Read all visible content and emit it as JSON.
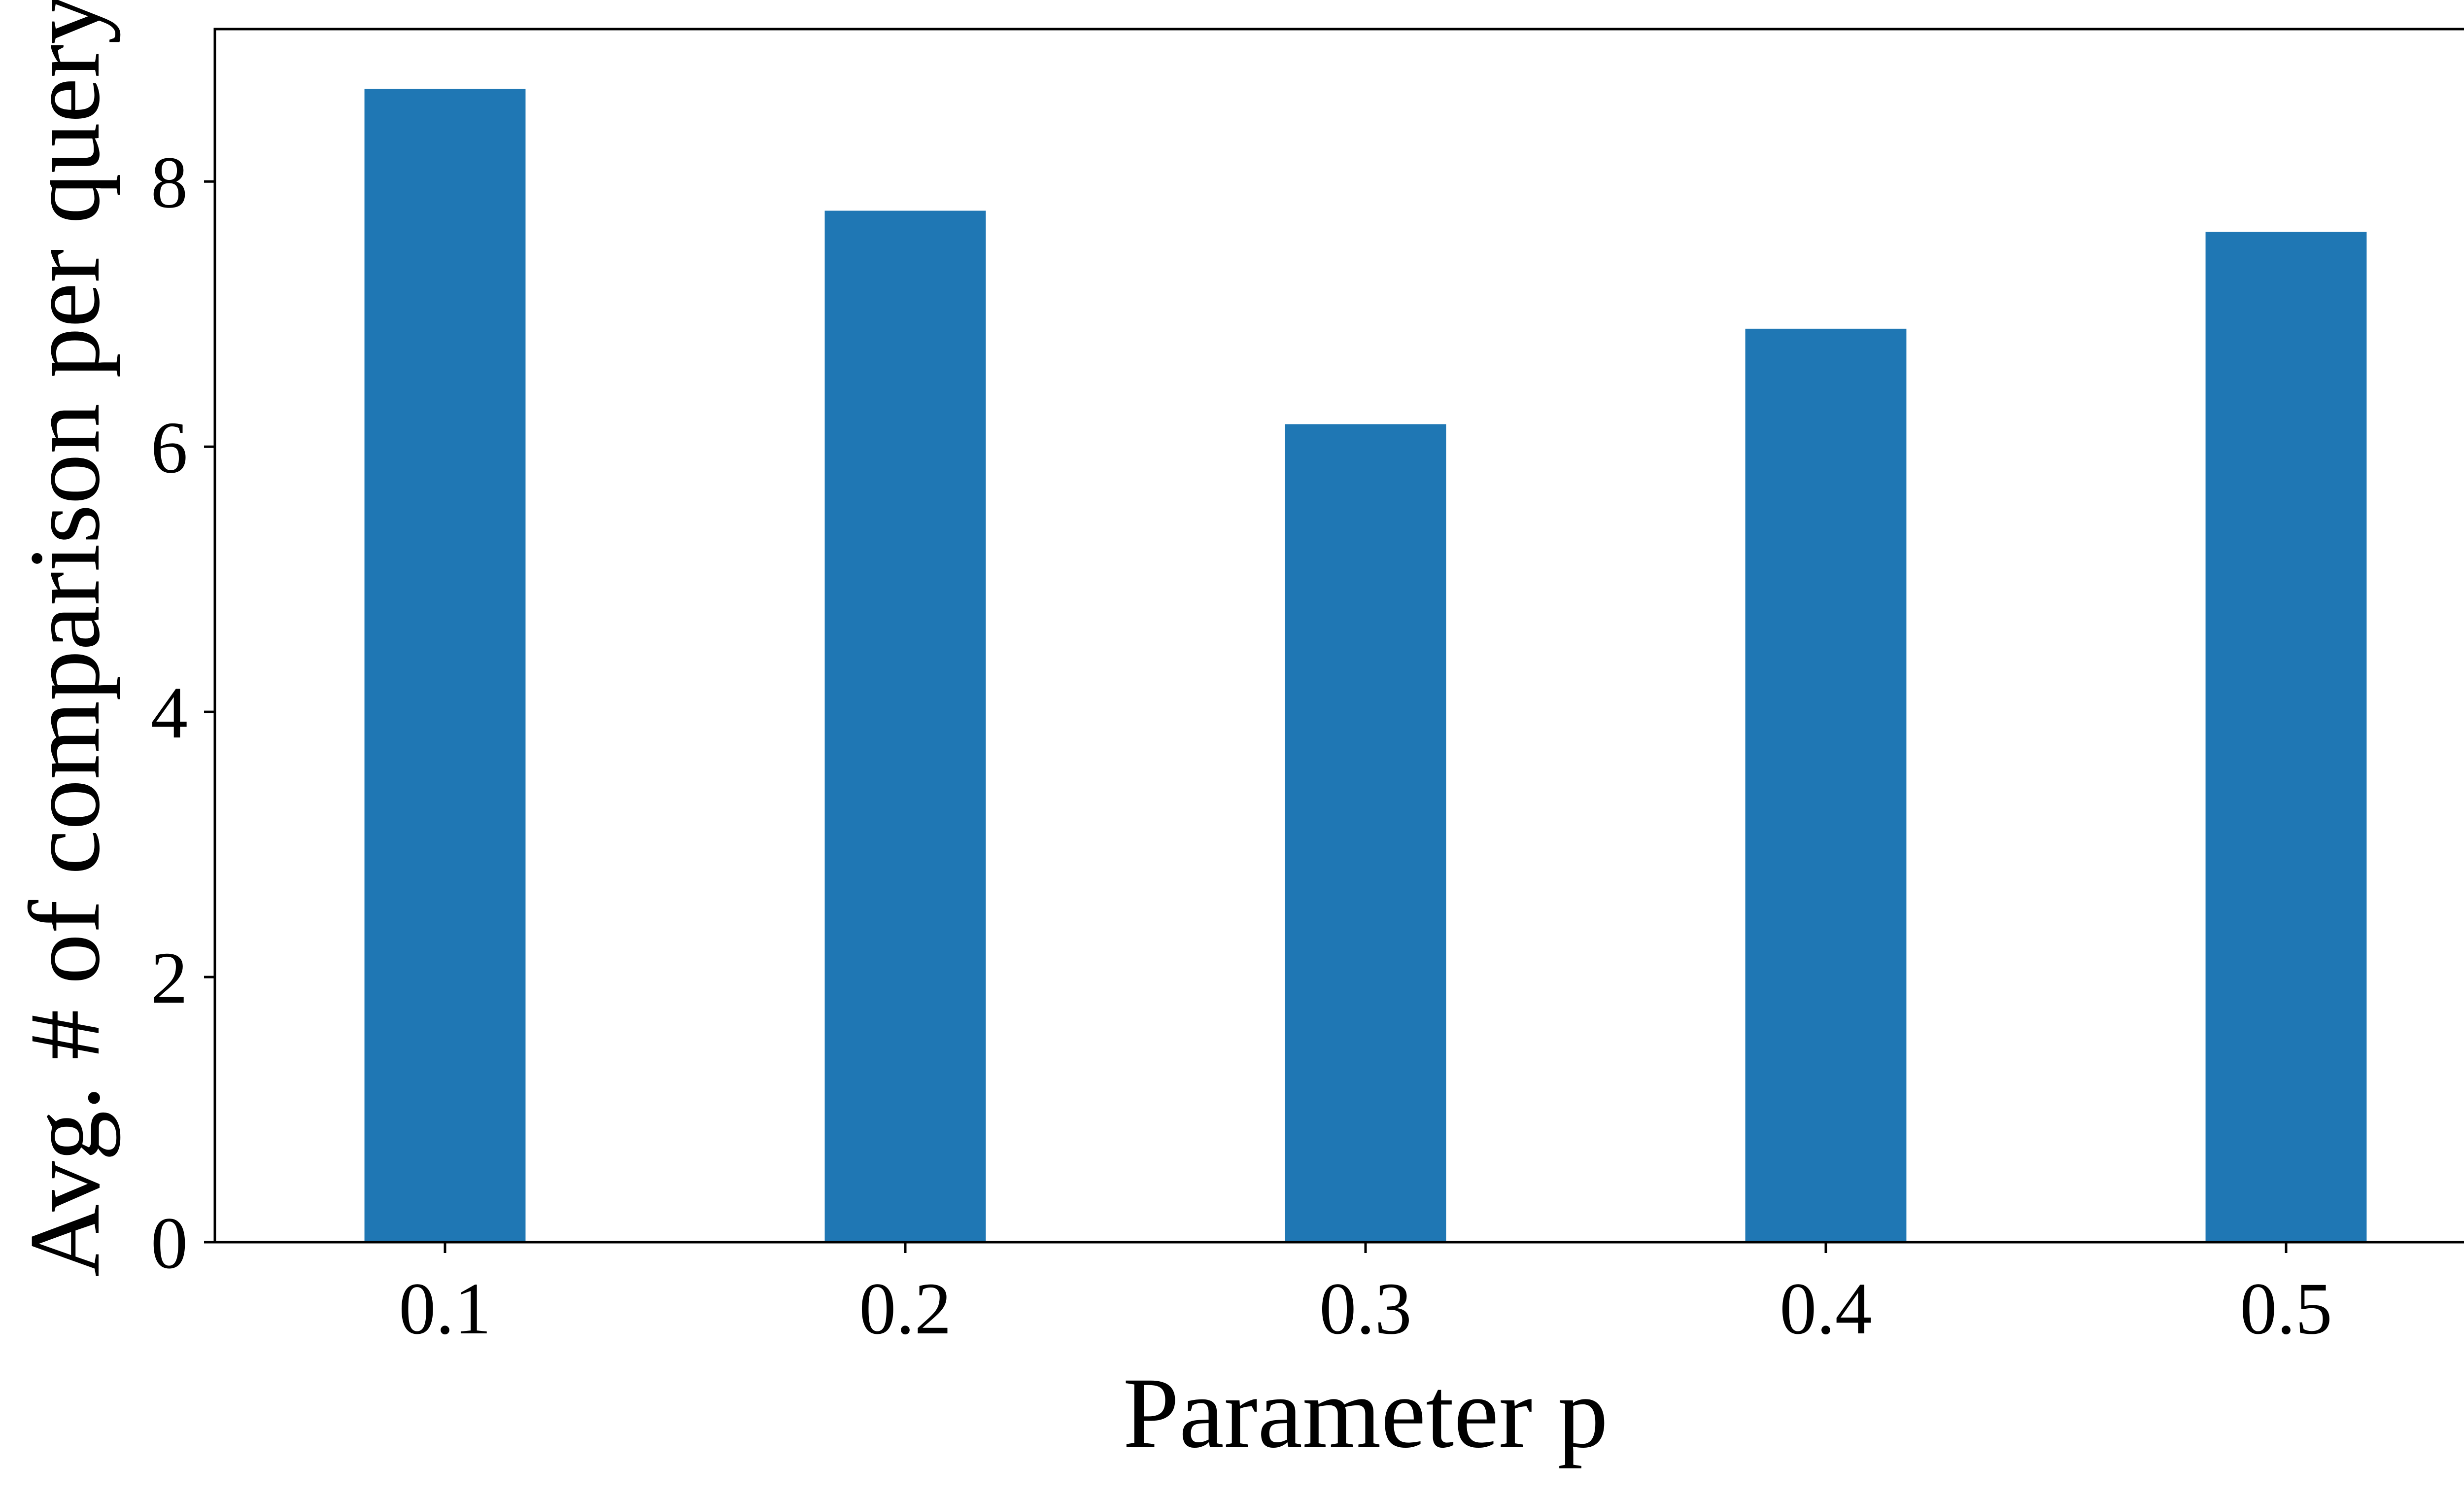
{
  "chart_data": {
    "type": "bar",
    "title": "",
    "xlabel": "Parameter p",
    "ylabel": "Avg. # of comparison per query",
    "categories": [
      "0.1",
      "0.2",
      "0.3",
      "0.4",
      "0.5"
    ],
    "values": [
      8.7,
      7.78,
      6.17,
      6.89,
      7.62
    ],
    "ylim": [
      0,
      9.15
    ],
    "yticks": [
      0,
      2,
      4,
      6,
      8
    ],
    "grid": false,
    "legend": "none",
    "colors": {
      "bar": "#1f77b4",
      "axis": "#000000",
      "background": "#ffffff"
    }
  }
}
